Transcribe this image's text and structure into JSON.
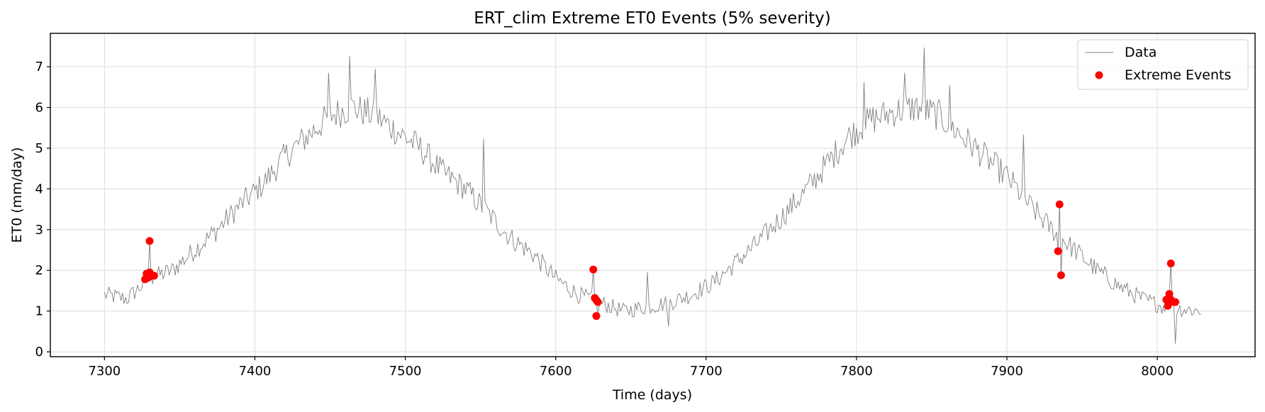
{
  "chart_data": {
    "type": "line",
    "title": "ERT_clim Extreme ET0 Events (5% severity)",
    "xlabel": "Time (days)",
    "ylabel": "ET0 (mm/day)",
    "xlim": [
      7264,
      8065
    ],
    "ylim": [
      -0.12,
      7.82
    ],
    "xticks": [
      7300,
      7400,
      7500,
      7600,
      7700,
      7800,
      7900,
      8000
    ],
    "yticks": [
      0,
      1,
      2,
      3,
      4,
      5,
      6,
      7
    ],
    "grid": true,
    "legend_position": "top-right",
    "colors": {
      "data_line": "#808080",
      "events": "#ff0000"
    },
    "series": [
      {
        "name": "Data",
        "type": "line",
        "x_start": 7300,
        "x_end": 8029,
        "anchors": [
          [
            7300,
            1.4
          ],
          [
            7315,
            1.3
          ],
          [
            7330,
            1.8
          ],
          [
            7345,
            2.0
          ],
          [
            7360,
            2.5
          ],
          [
            7375,
            3.0
          ],
          [
            7390,
            3.6
          ],
          [
            7405,
            4.1
          ],
          [
            7420,
            4.8
          ],
          [
            7435,
            5.3
          ],
          [
            7450,
            5.8
          ],
          [
            7465,
            6.0
          ],
          [
            7480,
            5.8
          ],
          [
            7495,
            5.4
          ],
          [
            7510,
            5.0
          ],
          [
            7525,
            4.4
          ],
          [
            7540,
            4.0
          ],
          [
            7555,
            3.4
          ],
          [
            7570,
            2.8
          ],
          [
            7585,
            2.4
          ],
          [
            7600,
            1.8
          ],
          [
            7615,
            1.4
          ],
          [
            7630,
            1.2
          ],
          [
            7645,
            1.0
          ],
          [
            7660,
            1.1
          ],
          [
            7675,
            1.2
          ],
          [
            7690,
            1.4
          ],
          [
            7705,
            1.7
          ],
          [
            7720,
            2.2
          ],
          [
            7735,
            2.7
          ],
          [
            7750,
            3.3
          ],
          [
            7765,
            3.9
          ],
          [
            7780,
            4.6
          ],
          [
            7795,
            5.3
          ],
          [
            7810,
            5.7
          ],
          [
            7825,
            5.9
          ],
          [
            7840,
            6.0
          ],
          [
            7855,
            5.8
          ],
          [
            7870,
            5.3
          ],
          [
            7885,
            4.8
          ],
          [
            7900,
            4.3
          ],
          [
            7915,
            3.6
          ],
          [
            7930,
            3.0
          ],
          [
            7945,
            2.5
          ],
          [
            7960,
            2.0
          ],
          [
            7975,
            1.6
          ],
          [
            7990,
            1.3
          ],
          [
            8005,
            1.1
          ],
          [
            8029,
            1.0
          ]
        ],
        "noise": 0.32,
        "spikes": [
          [
            7449,
            6.85
          ],
          [
            7463,
            7.27
          ],
          [
            7480,
            6.95
          ],
          [
            7552,
            5.23
          ],
          [
            7661,
            1.95
          ],
          [
            7805,
            6.62
          ],
          [
            7832,
            6.85
          ],
          [
            7845,
            7.47
          ],
          [
            7862,
            6.55
          ],
          [
            7911,
            5.33
          ],
          [
            8012,
            0.2
          ],
          [
            7628,
            0.88
          ],
          [
            7675,
            0.62
          ]
        ]
      },
      {
        "name": "Extreme Events",
        "type": "scatter",
        "points": [
          [
            7327,
            1.78
          ],
          [
            7328,
            1.92
          ],
          [
            7329,
            1.82
          ],
          [
            7330,
            2.72
          ],
          [
            7330,
            1.95
          ],
          [
            7331,
            1.86
          ],
          [
            7333,
            1.87
          ],
          [
            7625,
            2.02
          ],
          [
            7626,
            1.32
          ],
          [
            7627,
            1.27
          ],
          [
            7627,
            0.88
          ],
          [
            7628,
            1.22
          ],
          [
            7934,
            2.47
          ],
          [
            7935,
            3.62
          ],
          [
            7936,
            1.88
          ],
          [
            8006,
            1.28
          ],
          [
            8007,
            1.13
          ],
          [
            8008,
            1.42
          ],
          [
            8009,
            2.17
          ],
          [
            8009,
            1.28
          ],
          [
            8010,
            1.23
          ],
          [
            8012,
            1.22
          ]
        ]
      }
    ]
  }
}
